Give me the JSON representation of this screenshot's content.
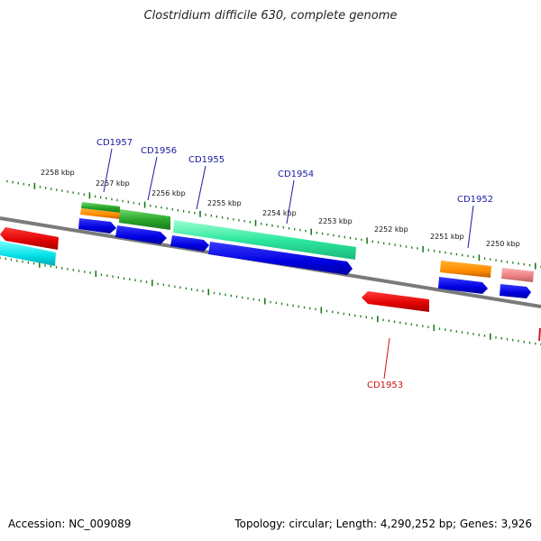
{
  "title": "Clostridium difficile 630, complete genome",
  "footer": {
    "accession": "Accession: NC_009089",
    "summary": "Topology: circular; Length: 4,290,252 bp; Genes: 3,926"
  },
  "colors": {
    "backbone": "#7a7a7a",
    "tick": "#1a7a1a",
    "label_forward": "#1a1aa0",
    "label_reverse": "#cc1111"
  },
  "ticks": [
    "2258 kbp",
    "2257 kbp",
    "2256 kbp",
    "2255 kbp",
    "2254 kbp",
    "2253 kbp",
    "2252 kbp",
    "2251 kbp",
    "2250 kbp"
  ],
  "gene_labels": [
    {
      "id": "CD1957",
      "strand": "forward"
    },
    {
      "id": "CD1956",
      "strand": "forward"
    },
    {
      "id": "CD1955",
      "strand": "forward"
    },
    {
      "id": "CD1954",
      "strand": "forward"
    },
    {
      "id": "CD1953",
      "strand": "reverse"
    },
    {
      "id": "CD1952",
      "strand": "forward"
    }
  ]
}
